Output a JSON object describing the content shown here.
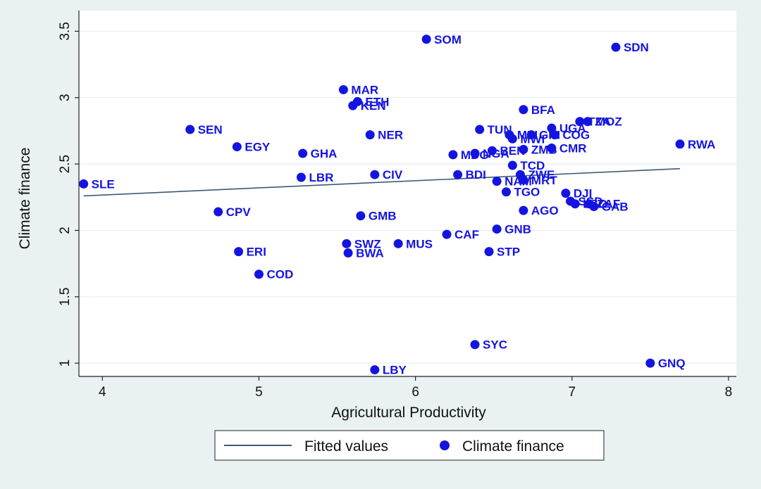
{
  "chart_data": {
    "type": "scatter",
    "xlabel": "Agricultural Productivity",
    "ylabel": "Climate finance",
    "xlim": [
      3.85,
      8.05
    ],
    "ylim": [
      0.9,
      3.55
    ],
    "x_ticks": [
      4,
      5,
      6,
      7,
      8
    ],
    "y_ticks": [
      1,
      1.5,
      2,
      2.5,
      3,
      3.5
    ],
    "x_tick_labels": [
      "4",
      "5",
      "6",
      "7",
      "8"
    ],
    "y_tick_labels": [
      "1",
      "1.5",
      "2",
      "2.5",
      "3",
      "3.5"
    ],
    "grid": "horizontal",
    "fitted_line": {
      "x": [
        3.88,
        7.69
      ],
      "y": [
        2.26,
        2.465
      ]
    },
    "points": [
      {
        "label": "SLE",
        "x": 3.88,
        "y": 2.35
      },
      {
        "label": "SEN",
        "x": 4.56,
        "y": 2.76
      },
      {
        "label": "CPV",
        "x": 4.74,
        "y": 2.14
      },
      {
        "label": "EGY",
        "x": 4.86,
        "y": 2.63
      },
      {
        "label": "ERI",
        "x": 4.87,
        "y": 1.84
      },
      {
        "label": "COD",
        "x": 5.0,
        "y": 1.67
      },
      {
        "label": "LBR",
        "x": 5.27,
        "y": 2.4
      },
      {
        "label": "GHA",
        "x": 5.28,
        "y": 2.58
      },
      {
        "label": "MAR",
        "x": 5.54,
        "y": 3.06
      },
      {
        "label": "SWZ",
        "x": 5.56,
        "y": 1.9
      },
      {
        "label": "BWA",
        "x": 5.57,
        "y": 1.83
      },
      {
        "label": "KEN",
        "x": 5.6,
        "y": 2.94
      },
      {
        "label": "ETH",
        "x": 5.63,
        "y": 2.97
      },
      {
        "label": "GMB",
        "x": 5.65,
        "y": 2.11
      },
      {
        "label": "NER",
        "x": 5.71,
        "y": 2.72
      },
      {
        "label": "CIV",
        "x": 5.74,
        "y": 2.42
      },
      {
        "label": "LBY",
        "x": 5.74,
        "y": 0.95
      },
      {
        "label": "MUS",
        "x": 5.89,
        "y": 1.9
      },
      {
        "label": "SOM",
        "x": 6.07,
        "y": 3.44
      },
      {
        "label": "CAF",
        "x": 6.2,
        "y": 1.97
      },
      {
        "label": "MDG",
        "x": 6.24,
        "y": 2.57
      },
      {
        "label": "BDI",
        "x": 6.27,
        "y": 2.42
      },
      {
        "label": "SYC",
        "x": 6.38,
        "y": 1.14
      },
      {
        "label": "NGA",
        "x": 6.38,
        "y": 2.58
      },
      {
        "label": "TUN",
        "x": 6.41,
        "y": 2.76
      },
      {
        "label": "STP",
        "x": 6.47,
        "y": 1.84
      },
      {
        "label": "BEN",
        "x": 6.49,
        "y": 2.6
      },
      {
        "label": "GNB",
        "x": 6.52,
        "y": 2.01
      },
      {
        "label": "NAM",
        "x": 6.52,
        "y": 2.37
      },
      {
        "label": "TGO",
        "x": 6.58,
        "y": 2.29
      },
      {
        "label": "MLI",
        "x": 6.6,
        "y": 2.72
      },
      {
        "label": "MWI",
        "x": 6.62,
        "y": 2.69
      },
      {
        "label": "TCD",
        "x": 6.62,
        "y": 2.49
      },
      {
        "label": "ZWE",
        "x": 6.67,
        "y": 2.42
      },
      {
        "label": "MRT",
        "x": 6.69,
        "y": 2.38
      },
      {
        "label": "BFA",
        "x": 6.69,
        "y": 2.91
      },
      {
        "label": "AGO",
        "x": 6.69,
        "y": 2.15
      },
      {
        "label": "ZMB",
        "x": 6.69,
        "y": 2.61
      },
      {
        "label": "GIN",
        "x": 6.74,
        "y": 2.72
      },
      {
        "label": "UGA",
        "x": 6.87,
        "y": 2.77
      },
      {
        "label": "CMR",
        "x": 6.87,
        "y": 2.62
      },
      {
        "label": "COG",
        "x": 6.89,
        "y": 2.72
      },
      {
        "label": "DJI",
        "x": 6.96,
        "y": 2.28
      },
      {
        "label": "SSD",
        "x": 6.99,
        "y": 2.22
      },
      {
        "label": "LSO",
        "x": 7.02,
        "y": 2.2
      },
      {
        "label": "TZA",
        "x": 7.05,
        "y": 2.82
      },
      {
        "label": "MOZ",
        "x": 7.1,
        "y": 2.82
      },
      {
        "label": "ZAF",
        "x": 7.11,
        "y": 2.2
      },
      {
        "label": "GAB",
        "x": 7.14,
        "y": 2.18
      },
      {
        "label": "SDN",
        "x": 7.28,
        "y": 3.38
      },
      {
        "label": "GNQ",
        "x": 7.5,
        "y": 1.0
      },
      {
        "label": "RWA",
        "x": 7.69,
        "y": 2.65
      }
    ],
    "legend": {
      "position": "bottom",
      "entries": [
        "Fitted values",
        "Climate finance"
      ]
    },
    "colors": {
      "marker": "#1414e0",
      "fit_line": "#3a5a78",
      "grid": "#e6edf2",
      "background": "#eaf1f3",
      "plot_bg": "#ffffff"
    }
  }
}
